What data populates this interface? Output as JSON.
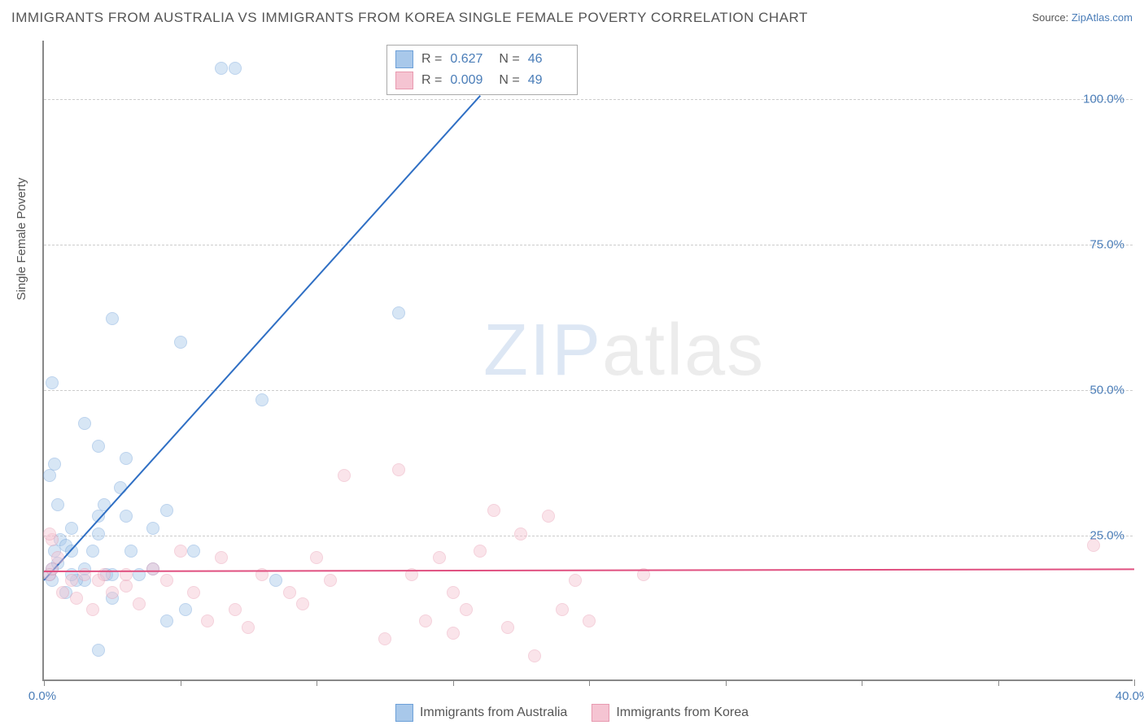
{
  "title": "IMMIGRANTS FROM AUSTRALIA VS IMMIGRANTS FROM KOREA SINGLE FEMALE POVERTY CORRELATION CHART",
  "source_prefix": "Source: ",
  "source_link": "ZipAtlas.com",
  "ylabel": "Single Female Poverty",
  "watermark_a": "ZIP",
  "watermark_b": "atlas",
  "chart": {
    "type": "scatter",
    "xlim": [
      0,
      40
    ],
    "ylim": [
      0,
      110
    ],
    "xticks": [
      0,
      5,
      10,
      15,
      20,
      25,
      30,
      35,
      40
    ],
    "xtick_labels": {
      "0": "0.0%",
      "40": "40.0%"
    },
    "yticks": [
      25,
      50,
      75,
      100
    ],
    "ytick_labels": {
      "25": "25.0%",
      "50": "50.0%",
      "75": "75.0%",
      "100": "100.0%"
    },
    "grid_color": "#cccccc",
    "axis_color": "#888888",
    "background_color": "#ffffff",
    "point_radius": 8,
    "point_opacity": 0.45,
    "series": [
      {
        "name": "Immigrants from Australia",
        "color_stroke": "#6da0d8",
        "color_fill": "#a8c8ea",
        "trend": {
          "slope": 5.2,
          "intercept": 17.5,
          "x0": 0,
          "x1": 16,
          "color": "#2f6fc4",
          "width": 2
        },
        "points": [
          [
            0.2,
            18
          ],
          [
            0.3,
            19
          ],
          [
            0.3,
            17
          ],
          [
            0.5,
            20
          ],
          [
            0.4,
            22
          ],
          [
            0.6,
            24
          ],
          [
            0.8,
            23
          ],
          [
            1.0,
            22
          ],
          [
            1.0,
            26
          ],
          [
            0.2,
            35
          ],
          [
            0.4,
            37
          ],
          [
            0.3,
            51
          ],
          [
            1.5,
            19
          ],
          [
            1.5,
            17
          ],
          [
            1.8,
            22
          ],
          [
            2.0,
            25
          ],
          [
            2.0,
            28
          ],
          [
            2.2,
            30
          ],
          [
            2.3,
            18
          ],
          [
            2.5,
            14
          ],
          [
            2.0,
            40
          ],
          [
            1.5,
            44
          ],
          [
            2.5,
            62
          ],
          [
            3.0,
            38
          ],
          [
            3.5,
            18
          ],
          [
            3.0,
            28
          ],
          [
            4.0,
            26
          ],
          [
            4.5,
            29
          ],
          [
            5.0,
            58
          ],
          [
            5.5,
            22
          ],
          [
            5.2,
            12
          ],
          [
            6.5,
            105
          ],
          [
            7.0,
            105
          ],
          [
            8.0,
            48
          ],
          [
            8.5,
            17
          ],
          [
            2.0,
            5
          ],
          [
            2.5,
            18
          ],
          [
            0.8,
            15
          ],
          [
            1.2,
            17
          ],
          [
            1.0,
            18
          ],
          [
            0.5,
            30
          ],
          [
            13.0,
            63
          ],
          [
            4.0,
            19
          ],
          [
            4.5,
            10
          ],
          [
            3.2,
            22
          ],
          [
            2.8,
            33
          ]
        ]
      },
      {
        "name": "Immigrants from Korea",
        "color_stroke": "#e89ab0",
        "color_fill": "#f5c4d2",
        "trend": {
          "slope": 0.009,
          "intercept": 19,
          "x0": 0,
          "x1": 40,
          "color": "#e05080",
          "width": 2
        },
        "points": [
          [
            0.2,
            18
          ],
          [
            0.3,
            19
          ],
          [
            0.3,
            24
          ],
          [
            0.5,
            21
          ],
          [
            0.7,
            15
          ],
          [
            1.0,
            17
          ],
          [
            1.2,
            14
          ],
          [
            1.5,
            18
          ],
          [
            1.8,
            12
          ],
          [
            2.0,
            17
          ],
          [
            2.2,
            18
          ],
          [
            2.5,
            15
          ],
          [
            3.0,
            16
          ],
          [
            3.0,
            18
          ],
          [
            3.5,
            13
          ],
          [
            4.0,
            19
          ],
          [
            4.5,
            17
          ],
          [
            5.0,
            22
          ],
          [
            5.5,
            15
          ],
          [
            6.0,
            10
          ],
          [
            6.5,
            21
          ],
          [
            7.0,
            12
          ],
          [
            7.5,
            9
          ],
          [
            8.0,
            18
          ],
          [
            9.0,
            15
          ],
          [
            9.5,
            13
          ],
          [
            10.0,
            21
          ],
          [
            10.5,
            17
          ],
          [
            11.0,
            35
          ],
          [
            12.5,
            7
          ],
          [
            13.0,
            36
          ],
          [
            13.5,
            18
          ],
          [
            14.0,
            10
          ],
          [
            14.5,
            21
          ],
          [
            15.0,
            8
          ],
          [
            15.5,
            12
          ],
          [
            16.0,
            22
          ],
          [
            16.5,
            29
          ],
          [
            17.0,
            9
          ],
          [
            17.5,
            25
          ],
          [
            18.0,
            4
          ],
          [
            18.5,
            28
          ],
          [
            19.0,
            12
          ],
          [
            19.5,
            17
          ],
          [
            20.0,
            10
          ],
          [
            22.0,
            18
          ],
          [
            15.0,
            15
          ],
          [
            38.5,
            23
          ],
          [
            0.2,
            25
          ]
        ]
      }
    ]
  },
  "stats_legend": {
    "rows": [
      {
        "swatch_fill": "#a8c8ea",
        "swatch_stroke": "#6da0d8",
        "r_label": "R =",
        "r": "0.627",
        "n_label": "N =",
        "n": "46"
      },
      {
        "swatch_fill": "#f5c4d2",
        "swatch_stroke": "#e89ab0",
        "r_label": "R =",
        "r": "0.009",
        "n_label": "N =",
        "n": "49"
      }
    ]
  },
  "bottom_legend": [
    {
      "swatch_fill": "#a8c8ea",
      "swatch_stroke": "#6da0d8",
      "label": "Immigrants from Australia"
    },
    {
      "swatch_fill": "#f5c4d2",
      "swatch_stroke": "#e89ab0",
      "label": "Immigrants from Korea"
    }
  ]
}
